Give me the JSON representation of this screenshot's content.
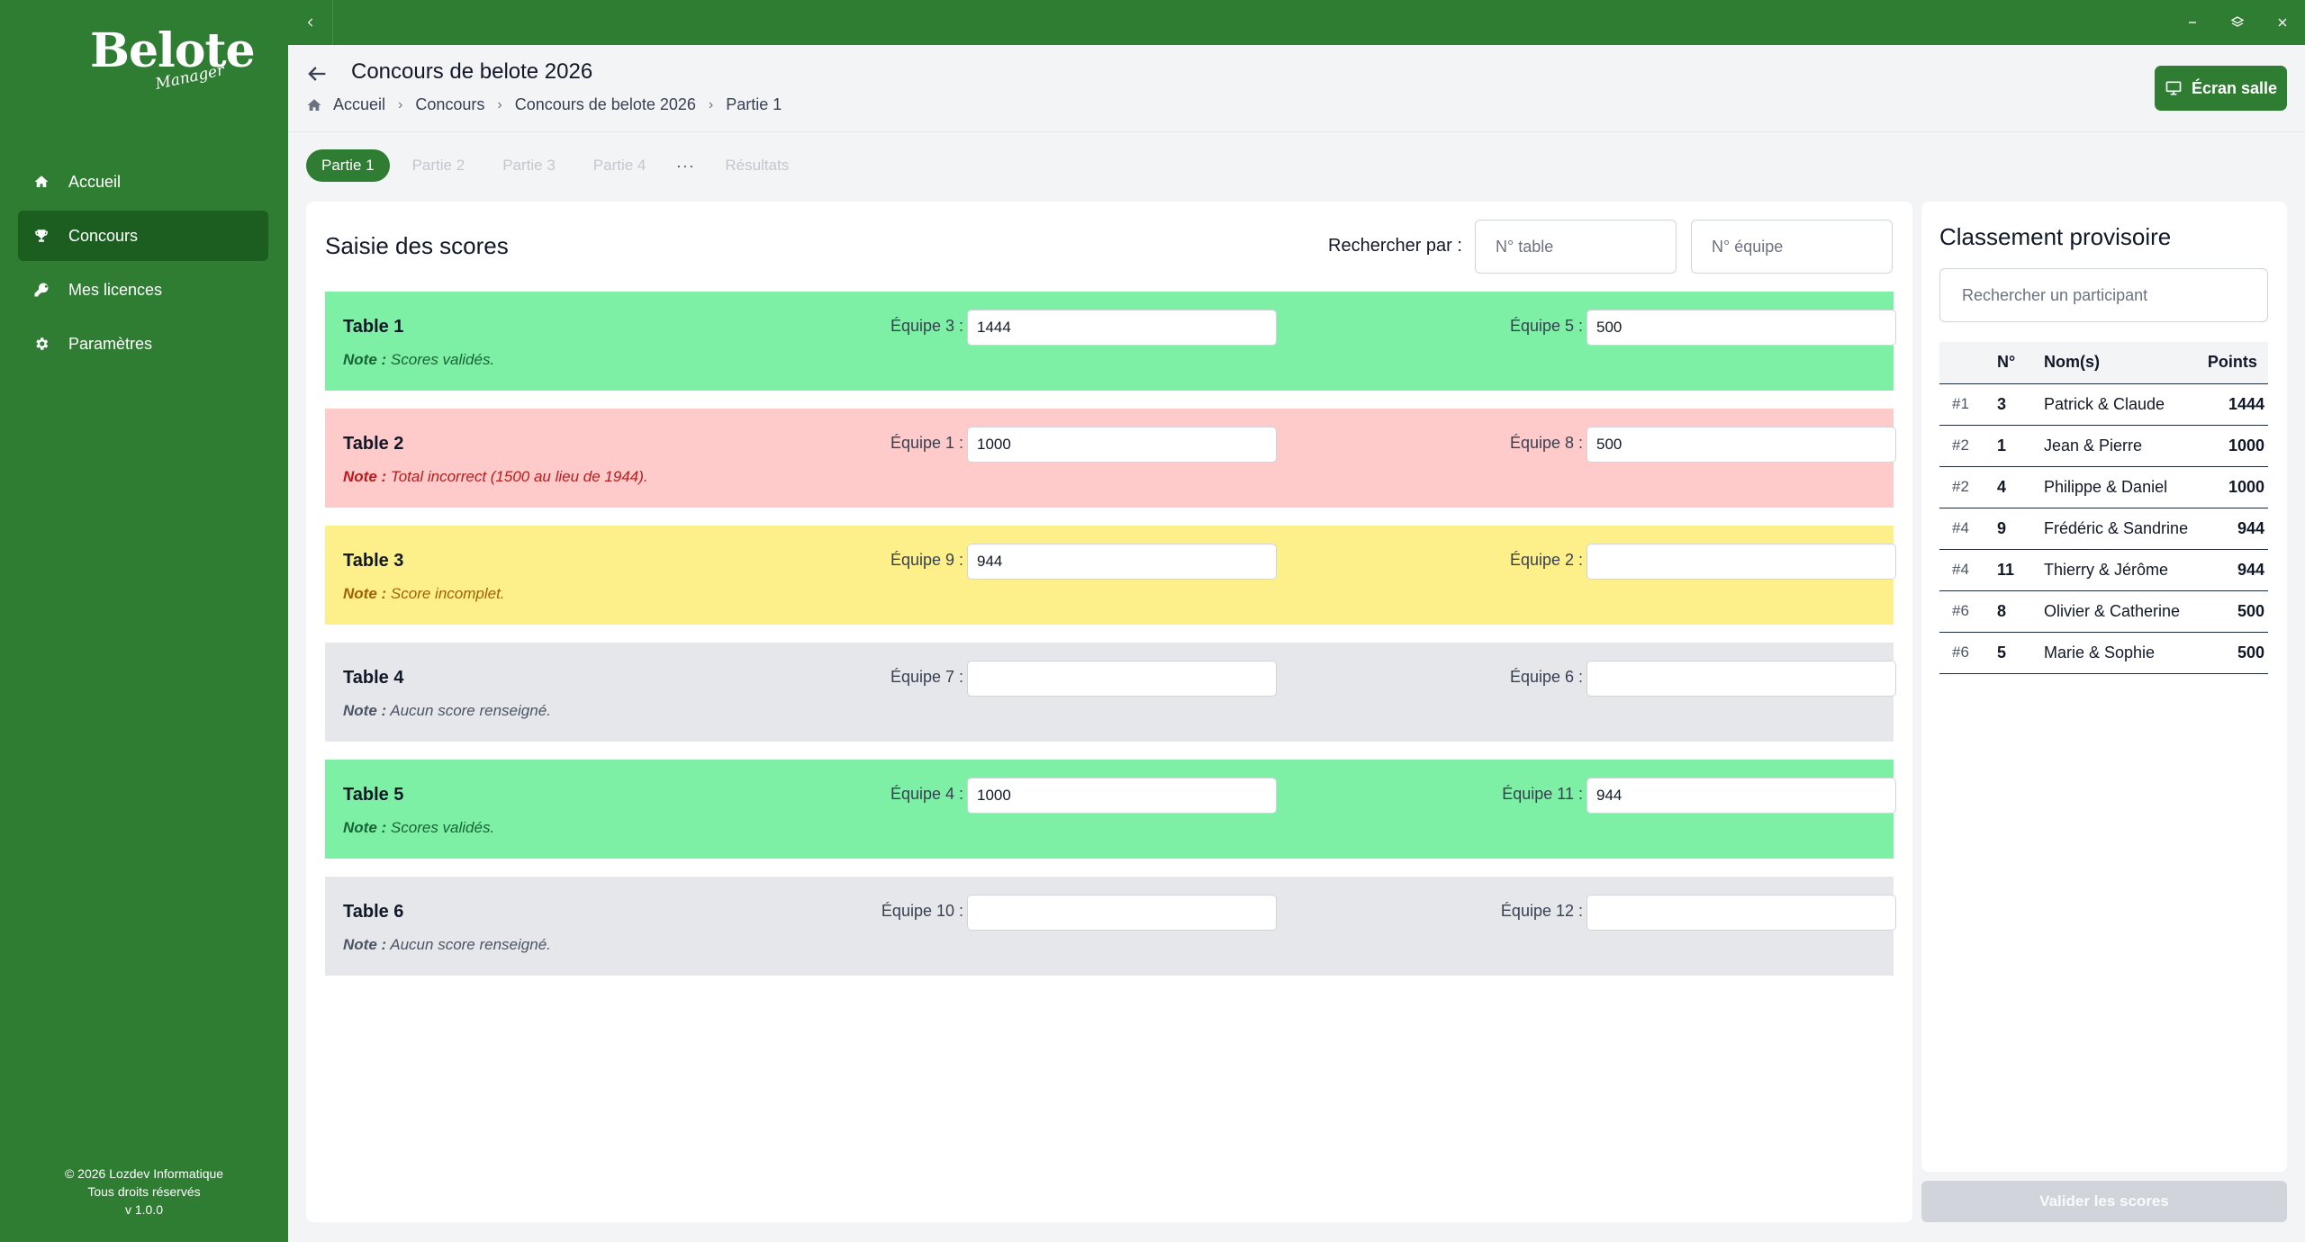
{
  "app": {
    "logo_main": "Belote",
    "logo_sub": "Manager",
    "footer": [
      "© 2026 Lozdev Informatique",
      "Tous droits réservés",
      "v 1.0.0"
    ]
  },
  "sidebar": {
    "items": [
      {
        "label": "Accueil",
        "icon": "home-icon"
      },
      {
        "label": "Concours",
        "icon": "trophy-icon",
        "active": true
      },
      {
        "label": "Mes licences",
        "icon": "key-icon"
      },
      {
        "label": "Paramètres",
        "icon": "gear-icon"
      }
    ]
  },
  "header": {
    "title": "Concours de belote 2026",
    "breadcrumb": [
      "Accueil",
      "Concours",
      "Concours de belote 2026",
      "Partie 1"
    ],
    "ecran_label": "Écran salle"
  },
  "tabs": {
    "items": [
      "Partie 1",
      "Partie 2",
      "Partie 3",
      "Partie 4"
    ],
    "more": "···",
    "results": "Résultats"
  },
  "scores": {
    "title": "Saisie des scores",
    "search_label": "Rechercher par :",
    "table_placeholder": "N° table",
    "team_placeholder": "N° équipe",
    "note_label": "Note :",
    "rows": [
      {
        "name": "Table 1",
        "team_a": "Équipe 3 :",
        "score_a": "1444",
        "team_b": "Équipe 5 :",
        "score_b": "500",
        "note": "Scores validés.",
        "status": "valid"
      },
      {
        "name": "Table 2",
        "team_a": "Équipe 1 :",
        "score_a": "1000",
        "team_b": "Équipe 8 :",
        "score_b": "500",
        "note": "Total incorrect (1500 au lieu de 1944).",
        "status": "error"
      },
      {
        "name": "Table 3",
        "team_a": "Équipe 9 :",
        "score_a": "944",
        "team_b": "Équipe 2 :",
        "score_b": "",
        "note": "Score incomplet.",
        "status": "incomplete"
      },
      {
        "name": "Table 4",
        "team_a": "Équipe 7 :",
        "score_a": "",
        "team_b": "Équipe 6 :",
        "score_b": "",
        "note": "Aucun score renseigné.",
        "status": "empty"
      },
      {
        "name": "Table 5",
        "team_a": "Équipe 4 :",
        "score_a": "1000",
        "team_b": "Équipe 11 :",
        "score_b": "944",
        "note": "Scores validés.",
        "status": "valid"
      },
      {
        "name": "Table 6",
        "team_a": "Équipe 10 :",
        "score_a": "",
        "team_b": "Équipe 12 :",
        "score_b": "",
        "note": "Aucun score renseigné.",
        "status": "empty"
      }
    ]
  },
  "ranking": {
    "title": "Classement provisoire",
    "search_placeholder": "Rechercher un participant",
    "headers": {
      "rank": "",
      "num": "N°",
      "names": "Nom(s)",
      "points": "Points"
    },
    "rows": [
      {
        "rank": "#1",
        "num": "3",
        "names": "Patrick & Claude",
        "points": "1444"
      },
      {
        "rank": "#2",
        "num": "1",
        "names": "Jean & Pierre",
        "points": "1000"
      },
      {
        "rank": "#2",
        "num": "4",
        "names": "Philippe & Daniel",
        "points": "1000"
      },
      {
        "rank": "#4",
        "num": "9",
        "names": "Frédéric & Sandrine",
        "points": "944"
      },
      {
        "rank": "#4",
        "num": "11",
        "names": "Thierry & Jérôme",
        "points": "944"
      },
      {
        "rank": "#6",
        "num": "8",
        "names": "Olivier & Catherine",
        "points": "500"
      },
      {
        "rank": "#6",
        "num": "5",
        "names": "Marie & Sophie",
        "points": "500"
      }
    ],
    "validate_label": "Valider les scores"
  },
  "colors": {
    "brand": "#2e7d32",
    "valid": "#7df0a6",
    "error": "#fecaca",
    "incomplete": "#fdf08a",
    "empty": "#e5e7eb"
  }
}
